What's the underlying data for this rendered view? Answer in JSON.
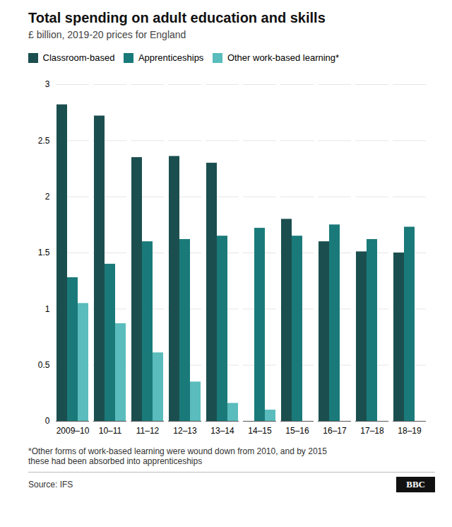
{
  "chart_data": {
    "type": "bar",
    "title": "Total spending on adult education and skills",
    "subtitle": "£ billion, 2019-20 prices for England",
    "categories": [
      "2009–10",
      "10–11",
      "11–12",
      "12–13",
      "13–14",
      "14–15",
      "15–16",
      "16–17",
      "17–18",
      "18–19"
    ],
    "series": [
      {
        "name": "Classroom-based",
        "color": "#1b4f4f",
        "values": [
          2.82,
          2.72,
          2.35,
          2.36,
          2.3,
          null,
          1.8,
          1.6,
          1.51,
          1.5
        ]
      },
      {
        "name": "Apprenticeships",
        "color": "#1a7a7a",
        "values": [
          1.28,
          1.4,
          1.6,
          1.62,
          1.65,
          1.72,
          1.65,
          1.75,
          1.62,
          1.73
        ]
      },
      {
        "name": "Other work-based learning*",
        "color": "#5abcbc",
        "values": [
          1.05,
          0.87,
          0.61,
          0.35,
          0.16,
          0.1,
          null,
          null,
          null,
          null
        ]
      }
    ],
    "ylim": [
      0,
      3.0
    ],
    "yticks": [
      0,
      0.5,
      1.0,
      1.5,
      2.0,
      2.5,
      3.0
    ],
    "grid": true,
    "legend": "top",
    "footnote": "*Other forms of work-based learning were wound down from 2010, and by 2015\nthese had been absorbed into apprenticeships",
    "source": "Source: IFS",
    "annotations": [
      "BBC"
    ]
  }
}
